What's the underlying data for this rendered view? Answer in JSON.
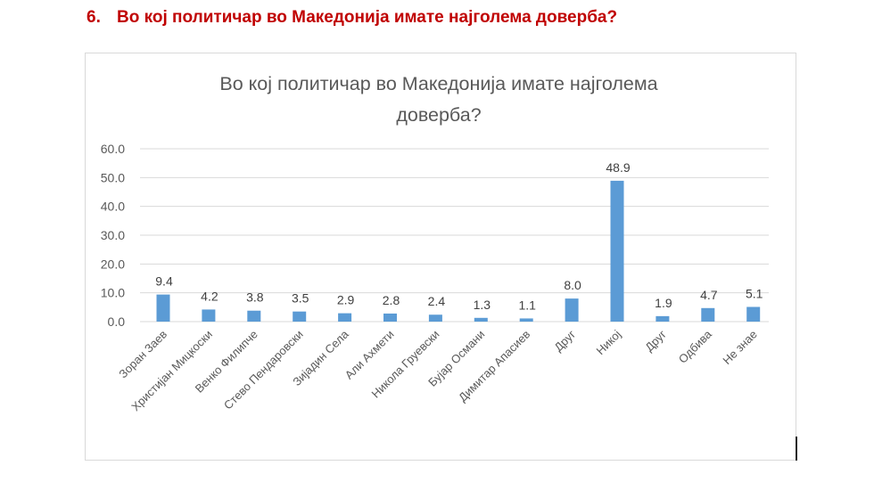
{
  "header": {
    "number": "6.",
    "question": "Во кој политичар во Македонија имате најголема доверба?"
  },
  "chart_data": {
    "type": "bar",
    "title_lines": [
      "Во кој политичар во Македонија имате најголема",
      "доверба?"
    ],
    "categories": [
      "Зоран Заев",
      "Христијан Мицкоски",
      "Венко Филипче",
      "Стево Пендаровски",
      "Зијадин Села",
      "Али Ахмети",
      "Никола Груевски",
      "Бујар Османи",
      "Димитар Апасиев",
      "Друг",
      "Никој",
      "Друг",
      "Одбива",
      "Не знае"
    ],
    "values": [
      9.4,
      4.2,
      3.8,
      3.5,
      2.9,
      2.8,
      2.4,
      1.3,
      1.1,
      8.0,
      48.9,
      1.9,
      4.7,
      5.1
    ],
    "value_labels": [
      "9.4",
      "4.2",
      "3.8",
      "3.5",
      "2.9",
      "2.8",
      "2.4",
      "1.3",
      "1.1",
      "8.0",
      "48.9",
      "1.9",
      "4.7",
      "5.1"
    ],
    "yticks": [
      "0.0",
      "10.0",
      "20.0",
      "30.0",
      "40.0",
      "50.0",
      "60.0"
    ],
    "ylim": [
      0,
      60
    ],
    "grid": true,
    "legend": "none",
    "bar_color": "#5b9bd5"
  }
}
